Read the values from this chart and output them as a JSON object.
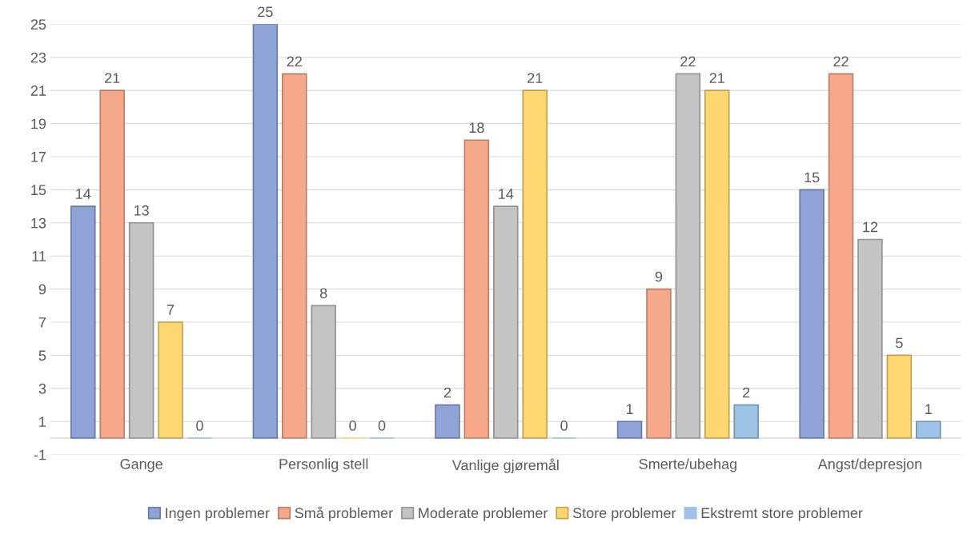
{
  "chart_data": {
    "type": "bar",
    "categories": [
      "Gange",
      "Personlig stell",
      "Vanlige gjøremål",
      "Smerte/ubehag",
      "Angst/depresjon"
    ],
    "series": [
      {
        "name": "Ingen problemer",
        "color": "#8fa3d8",
        "values": [
          14,
          25,
          2,
          1,
          15
        ]
      },
      {
        "name": "Små problemer",
        "color": "#f5a98a",
        "values": [
          21,
          22,
          18,
          9,
          22
        ]
      },
      {
        "name": "Moderate problemer",
        "color": "#c4c4c4",
        "values": [
          13,
          8,
          14,
          22,
          12
        ]
      },
      {
        "name": "Store problemer",
        "color": "#ffd770",
        "values": [
          7,
          0,
          21,
          21,
          5
        ]
      },
      {
        "name": "Ekstremt store problemer",
        "color": "#9dc3e6",
        "values": [
          0,
          0,
          0,
          2,
          1
        ]
      }
    ],
    "ylim": [
      -1,
      25
    ],
    "yticks": [
      -1,
      1,
      3,
      5,
      7,
      9,
      11,
      13,
      15,
      17,
      19,
      21,
      23,
      25
    ],
    "grid": "y",
    "legend": "bottom",
    "data_labels": true
  }
}
